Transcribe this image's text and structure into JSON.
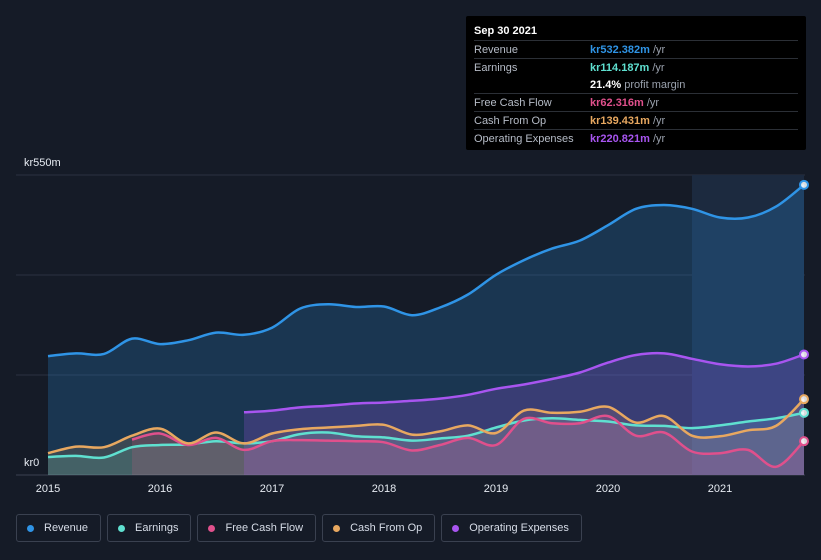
{
  "tooltip": {
    "date": "Sep 30 2021",
    "rows": [
      {
        "label": "Revenue",
        "value": "kr532.382m",
        "unit": "/yr",
        "color": "#2f94e6"
      },
      {
        "label": "Earnings",
        "value": "kr114.187m",
        "unit": "/yr",
        "color": "#5fe0d0"
      },
      {
        "label": "",
        "value": "21.4%",
        "unit": "profit margin",
        "color": "#ffffff"
      },
      {
        "label": "Free Cash Flow",
        "value": "kr62.316m",
        "unit": "/yr",
        "color": "#e0508c"
      },
      {
        "label": "Cash From Op",
        "value": "kr139.431m",
        "unit": "/yr",
        "color": "#e8a860"
      },
      {
        "label": "Operating Expenses",
        "value": "kr220.821m",
        "unit": "/yr",
        "color": "#a855f0"
      }
    ]
  },
  "legend": [
    {
      "label": "Revenue",
      "color": "#2f94e6"
    },
    {
      "label": "Earnings",
      "color": "#5fe0d0"
    },
    {
      "label": "Free Cash Flow",
      "color": "#e0508c"
    },
    {
      "label": "Cash From Op",
      "color": "#e8a860"
    },
    {
      "label": "Operating Expenses",
      "color": "#a855f0"
    }
  ],
  "chart_data": {
    "type": "area",
    "y_label_top": "kr550m",
    "y_label_bottom": "kr0",
    "ylim": [
      0,
      550
    ],
    "xlim": [
      2015.0,
      2021.75
    ],
    "x_ticks": [
      2015,
      2016,
      2017,
      2018,
      2019,
      2020,
      2021
    ],
    "x_tick_labels": [
      "2015",
      "2016",
      "2017",
      "2018",
      "2019",
      "2020",
      "2021"
    ],
    "highlight_from": 2020.75,
    "series": [
      {
        "name": "Revenue",
        "color": "#2f94e6",
        "points": [
          [
            2015.0,
            218
          ],
          [
            2015.25,
            223
          ],
          [
            2015.5,
            222
          ],
          [
            2015.75,
            250
          ],
          [
            2016.0,
            240
          ],
          [
            2016.25,
            247
          ],
          [
            2016.5,
            261
          ],
          [
            2016.75,
            257
          ],
          [
            2017.0,
            270
          ],
          [
            2017.25,
            305
          ],
          [
            2017.5,
            313
          ],
          [
            2017.75,
            308
          ],
          [
            2018.0,
            309
          ],
          [
            2018.25,
            293
          ],
          [
            2018.5,
            307
          ],
          [
            2018.75,
            331
          ],
          [
            2019.0,
            367
          ],
          [
            2019.25,
            394
          ],
          [
            2019.5,
            415
          ],
          [
            2019.75,
            430
          ],
          [
            2020.0,
            458
          ],
          [
            2020.25,
            488
          ],
          [
            2020.5,
            495
          ],
          [
            2020.75,
            488
          ],
          [
            2021.0,
            472
          ],
          [
            2021.25,
            472
          ],
          [
            2021.5,
            492
          ],
          [
            2021.75,
            532
          ]
        ]
      },
      {
        "name": "Earnings",
        "color": "#5fe0d0",
        "points": [
          [
            2015.0,
            33
          ],
          [
            2015.25,
            35
          ],
          [
            2015.5,
            32
          ],
          [
            2015.75,
            51
          ],
          [
            2016.0,
            55
          ],
          [
            2016.25,
            56
          ],
          [
            2016.5,
            62
          ],
          [
            2016.75,
            58
          ],
          [
            2017.0,
            62
          ],
          [
            2017.25,
            75
          ],
          [
            2017.5,
            78
          ],
          [
            2017.75,
            71
          ],
          [
            2018.0,
            69
          ],
          [
            2018.25,
            63
          ],
          [
            2018.5,
            67
          ],
          [
            2018.75,
            72
          ],
          [
            2019.0,
            87
          ],
          [
            2019.25,
            100
          ],
          [
            2019.5,
            104
          ],
          [
            2019.75,
            101
          ],
          [
            2020.0,
            98
          ],
          [
            2020.25,
            91
          ],
          [
            2020.5,
            90
          ],
          [
            2020.75,
            86
          ],
          [
            2021.0,
            91
          ],
          [
            2021.25,
            98
          ],
          [
            2021.5,
            104
          ],
          [
            2021.75,
            114
          ]
        ]
      },
      {
        "name": "Free Cash Flow",
        "color": "#e0508c",
        "startX": 2015.75,
        "points": [
          [
            2015.75,
            65
          ],
          [
            2016.0,
            76
          ],
          [
            2016.25,
            55
          ],
          [
            2016.5,
            68
          ],
          [
            2016.75,
            46
          ],
          [
            2017.0,
            62
          ],
          [
            2017.25,
            64
          ],
          [
            2017.5,
            63
          ],
          [
            2017.75,
            62
          ],
          [
            2018.0,
            60
          ],
          [
            2018.25,
            45
          ],
          [
            2018.5,
            55
          ],
          [
            2018.75,
            68
          ],
          [
            2019.0,
            55
          ],
          [
            2019.25,
            103
          ],
          [
            2019.5,
            95
          ],
          [
            2019.75,
            95
          ],
          [
            2020.0,
            108
          ],
          [
            2020.25,
            72
          ],
          [
            2020.5,
            78
          ],
          [
            2020.75,
            43
          ],
          [
            2021.0,
            40
          ],
          [
            2021.25,
            46
          ],
          [
            2021.5,
            15
          ],
          [
            2021.75,
            62
          ]
        ]
      },
      {
        "name": "Cash From Op",
        "color": "#e8a860",
        "points": [
          [
            2015.0,
            40
          ],
          [
            2015.25,
            52
          ],
          [
            2015.5,
            51
          ],
          [
            2015.75,
            72
          ],
          [
            2016.0,
            85
          ],
          [
            2016.25,
            58
          ],
          [
            2016.5,
            78
          ],
          [
            2016.75,
            58
          ],
          [
            2017.0,
            76
          ],
          [
            2017.25,
            84
          ],
          [
            2017.5,
            87
          ],
          [
            2017.75,
            90
          ],
          [
            2018.0,
            92
          ],
          [
            2018.25,
            74
          ],
          [
            2018.5,
            80
          ],
          [
            2018.75,
            91
          ],
          [
            2019.0,
            77
          ],
          [
            2019.25,
            118
          ],
          [
            2019.5,
            114
          ],
          [
            2019.75,
            116
          ],
          [
            2020.0,
            125
          ],
          [
            2020.25,
            96
          ],
          [
            2020.5,
            108
          ],
          [
            2020.75,
            72
          ],
          [
            2021.0,
            71
          ],
          [
            2021.25,
            82
          ],
          [
            2021.5,
            90
          ],
          [
            2021.75,
            139
          ]
        ]
      },
      {
        "name": "Operating Expenses",
        "color": "#a855f0",
        "startX": 2016.75,
        "points": [
          [
            2016.75,
            115
          ],
          [
            2017.0,
            118
          ],
          [
            2017.25,
            124
          ],
          [
            2017.5,
            127
          ],
          [
            2017.75,
            131
          ],
          [
            2018.0,
            133
          ],
          [
            2018.25,
            136
          ],
          [
            2018.5,
            140
          ],
          [
            2018.75,
            147
          ],
          [
            2019.0,
            158
          ],
          [
            2019.25,
            166
          ],
          [
            2019.5,
            176
          ],
          [
            2019.75,
            188
          ],
          [
            2020.0,
            206
          ],
          [
            2020.25,
            220
          ],
          [
            2020.5,
            223
          ],
          [
            2020.75,
            213
          ],
          [
            2021.0,
            203
          ],
          [
            2021.25,
            199
          ],
          [
            2021.5,
            204
          ],
          [
            2021.75,
            221
          ]
        ]
      }
    ]
  }
}
